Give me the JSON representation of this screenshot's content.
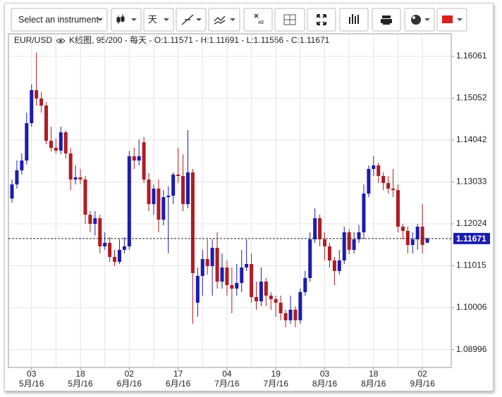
{
  "toolbar": {
    "instrument_placeholder": "Select an instrument",
    "period": "天",
    "all": "All"
  },
  "chart_data": {
    "type": "candlestick",
    "title": "EUR/USD",
    "subtitle": "K线图, 95/200 - 每天 - O:1.11571 - H:1.11691 - L:1.11556 - C:1.11671",
    "categories": [
      null,
      null,
      null,
      null,
      {
        "day": "03",
        "month": "5月/16"
      },
      null,
      null,
      null,
      null,
      null,
      null,
      null,
      null,
      null,
      {
        "day": "18",
        "month": "5月/16"
      },
      null,
      null,
      null,
      null,
      null,
      null,
      null,
      null,
      null,
      {
        "day": "02",
        "month": "6月/16"
      },
      null,
      null,
      null,
      null,
      null,
      null,
      null,
      null,
      null,
      {
        "day": "17",
        "month": "6月/16"
      },
      null,
      null,
      null,
      null,
      null,
      null,
      null,
      null,
      null,
      {
        "day": "04",
        "month": "7月/16"
      },
      null,
      null,
      null,
      null,
      null,
      null,
      null,
      null,
      null,
      {
        "day": "19",
        "month": "7月/16"
      },
      null,
      null,
      null,
      null,
      null,
      null,
      null,
      null,
      null,
      {
        "day": "03",
        "month": "8月/16"
      },
      null,
      null,
      null,
      null,
      null,
      null,
      null,
      null,
      null,
      {
        "day": "18",
        "month": "8月/16"
      },
      null,
      null,
      null,
      null,
      null,
      null,
      null,
      null,
      null,
      {
        "day": "02",
        "month": "9月/16"
      },
      null
    ],
    "open": [
      1.12635,
      1.12974,
      1.13314,
      1.13551,
      1.1445,
      1.15247,
      1.15044,
      1.14874,
      1.14026,
      1.13856,
      1.13789,
      1.1423,
      1.13721,
      1.13093,
      1.13144,
      1.13093,
      1.12245,
      1.12025,
      1.1216,
      1.11482,
      1.11567,
      1.11228,
      1.11109,
      1.11397,
      1.11482,
      1.13653,
      1.13551,
      1.1399,
      1.13093,
      1.125,
      1.12873,
      1.12126,
      1.12669,
      1.12703,
      1.13212,
      1.13178,
      1.125,
      1.13263,
      1.10125,
      1.1077,
      1.11177,
      1.11007,
      1.11448,
      1.10634,
      1.10973,
      1.10549,
      1.10464,
      1.106,
      1.10973,
      1.11058,
      1.10261,
      1.10159,
      1.10634,
      1.10295,
      1.1021,
      1.10125,
      1.09871,
      1.09701,
      1.09956,
      1.09701,
      1.1038,
      1.10719,
      1.11652,
      1.1216,
      1.11652,
      1.11482,
      1.11143,
      1.10888,
      1.11143,
      1.11821,
      1.11397,
      1.11652,
      1.11821,
      1.12754,
      1.13348,
      1.13432,
      1.13178,
      1.13008,
      1.12873,
      1.12839,
      1.11957,
      1.11855,
      1.11516,
      1.11652,
      1.11957,
      1.11571
    ],
    "high": [
      1.13093,
      1.13551,
      1.13721,
      1.14704,
      1.15383,
      1.1615,
      1.152,
      1.1496,
      1.14365,
      1.1408,
      1.14365,
      1.1428,
      1.1385,
      1.13432,
      1.13348,
      1.13178,
      1.1233,
      1.1233,
      1.12245,
      1.11821,
      1.117,
      1.114,
      1.11652,
      1.117,
      1.1378,
      1.1386,
      1.1406,
      1.1412,
      1.1325,
      1.12974,
      1.131,
      1.12839,
      1.1293,
      1.13263,
      1.13856,
      1.137,
      1.1428,
      1.13348,
      1.10973,
      1.114,
      1.11652,
      1.11652,
      1.11821,
      1.11313,
      1.11143,
      1.10973,
      1.11058,
      1.11397,
      1.11652,
      1.11313,
      1.10634,
      1.10973,
      1.1072,
      1.1038,
      1.10295,
      1.10295,
      1.09956,
      1.10295,
      1.1004,
      1.10464,
      1.10888,
      1.11821,
      1.124,
      1.12245,
      1.11821,
      1.11567,
      1.11228,
      1.11397,
      1.11957,
      1.119,
      1.11821,
      1.12,
      1.12974,
      1.13432,
      1.13653,
      1.135,
      1.13263,
      1.13178,
      1.13348,
      1.12974,
      1.12025,
      1.11957,
      1.11821,
      1.12025,
      1.125,
      1.11691
    ],
    "low": [
      1.12533,
      1.12873,
      1.13212,
      1.1345,
      1.14365,
      1.14874,
      1.14704,
      1.1394,
      1.1377,
      1.1372,
      1.137,
      1.136,
      1.12839,
      1.12974,
      1.12974,
      1.12025,
      1.11821,
      1.1174,
      1.11313,
      1.114,
      1.11109,
      1.11007,
      1.11058,
      1.11313,
      1.114,
      1.13348,
      1.13432,
      1.13008,
      1.1233,
      1.12245,
      1.11821,
      1.1199,
      1.11313,
      1.125,
      1.13008,
      1.1233,
      1.124,
      1.09617,
      1.09786,
      1.10295,
      1.108,
      1.10295,
      1.10464,
      1.10464,
      1.10295,
      1.09871,
      1.10295,
      1.1038,
      1.10888,
      1.10125,
      1.09956,
      1.1004,
      1.1004,
      1.09956,
      1.09785,
      1.09701,
      1.0953,
      1.09617,
      1.0953,
      1.09617,
      1.10295,
      1.10634,
      1.11567,
      1.11482,
      1.11143,
      1.10973,
      1.10549,
      1.10803,
      1.11058,
      1.113,
      1.11313,
      1.11567,
      1.11652,
      1.12669,
      1.13178,
      1.13008,
      1.12839,
      1.12754,
      1.12669,
      1.11821,
      1.11652,
      1.11313,
      1.11313,
      1.11397,
      1.11313,
      1.11556
    ],
    "close": [
      1.12974,
      1.13314,
      1.13551,
      1.1445,
      1.15247,
      1.15044,
      1.14874,
      1.14026,
      1.13856,
      1.13789,
      1.1423,
      1.13721,
      1.13093,
      1.13144,
      1.13093,
      1.12245,
      1.12025,
      1.1216,
      1.11482,
      1.11567,
      1.11228,
      1.11109,
      1.11397,
      1.11482,
      1.13653,
      1.13551,
      1.13653,
      1.13093,
      1.125,
      1.12873,
      1.12126,
      1.12669,
      1.12703,
      1.13212,
      1.13178,
      1.125,
      1.13263,
      1.10838,
      1.1077,
      1.11177,
      1.11007,
      1.11448,
      1.10634,
      1.10973,
      1.10549,
      1.10464,
      1.106,
      1.10973,
      1.11058,
      1.10261,
      1.10159,
      1.10634,
      1.10295,
      1.1021,
      1.10125,
      1.09871,
      1.09701,
      1.09956,
      1.09701,
      1.1038,
      1.10719,
      1.11652,
      1.1216,
      1.11652,
      1.11482,
      1.11143,
      1.10888,
      1.11143,
      1.11821,
      1.11397,
      1.11652,
      1.11821,
      1.12754,
      1.13348,
      1.13432,
      1.13178,
      1.13008,
      1.12873,
      1.12839,
      1.11957,
      1.11855,
      1.11516,
      1.11652,
      1.11957,
      1.11516,
      1.11671
    ],
    "up_color": "#1c1cae",
    "down_color": "#b01c22",
    "last_price": 1.11671,
    "last_price_color": "#1c1cae",
    "ylim": [
      1.08565,
      1.16604
    ],
    "yticks": [
      1.08996,
      1.10006,
      1.11015,
      1.12024,
      1.13033,
      1.14042,
      1.15052,
      1.16061
    ],
    "grid": true
  }
}
